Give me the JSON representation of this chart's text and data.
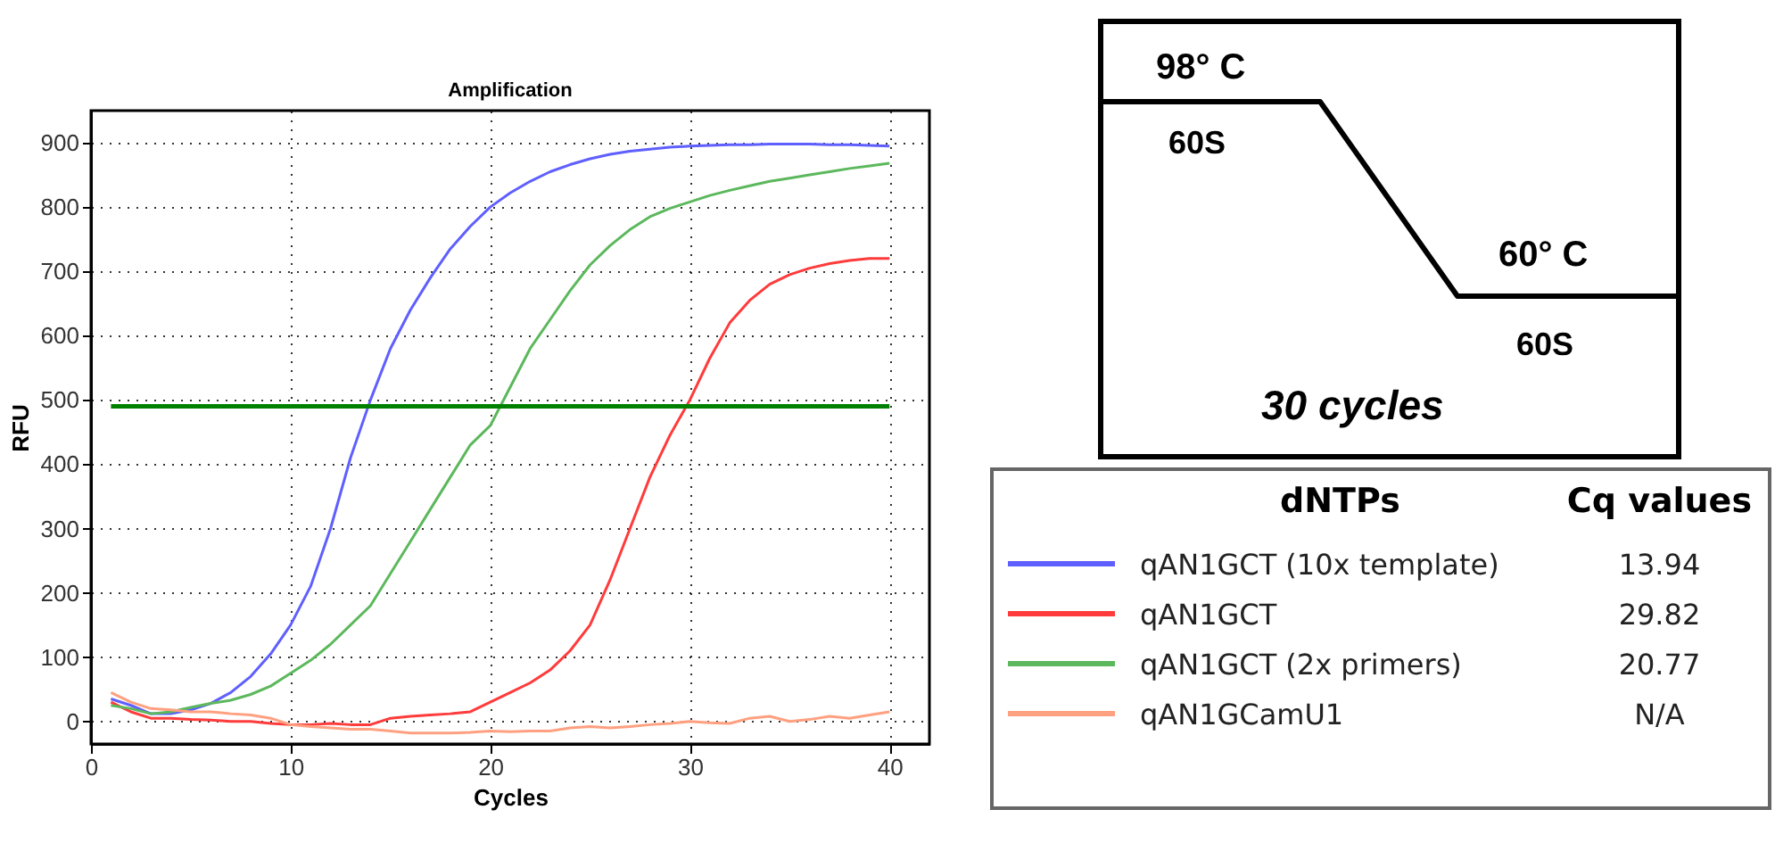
{
  "chart_data": {
    "type": "line",
    "title": "Amplification",
    "xlabel": "Cycles",
    "ylabel": "RFU",
    "legend_title": "dNTPs",
    "x": [
      1,
      2,
      3,
      4,
      5,
      6,
      7,
      8,
      9,
      10,
      11,
      12,
      13,
      14,
      15,
      16,
      17,
      18,
      19,
      20,
      21,
      22,
      23,
      24,
      25,
      26,
      27,
      28,
      29,
      30,
      31,
      32,
      33,
      34,
      35,
      36,
      37,
      38,
      39,
      40
    ],
    "series": [
      {
        "name": "qAN1GCT (10x template)",
        "color": "#5f5fff",
        "values": [
          35,
          25,
          12,
          12,
          18,
          28,
          45,
          70,
          105,
          150,
          210,
          300,
          410,
          500,
          580,
          640,
          690,
          735,
          770,
          800,
          822,
          840,
          855,
          866,
          875,
          882,
          887,
          890,
          893,
          895,
          896,
          897,
          897,
          898,
          898,
          898,
          897,
          897,
          896,
          895
        ]
      },
      {
        "name": "qAN1GCT",
        "color": "#ff3b3b",
        "values": [
          30,
          15,
          5,
          5,
          3,
          2,
          0,
          0,
          -3,
          -5,
          -5,
          -3,
          -5,
          -5,
          5,
          8,
          10,
          12,
          15,
          30,
          45,
          60,
          80,
          110,
          150,
          220,
          300,
          380,
          445,
          500,
          565,
          620,
          655,
          680,
          695,
          705,
          712,
          717,
          720,
          720
        ]
      },
      {
        "name": "qAN1GCT (2x primers)",
        "color": "#5cb85c",
        "values": [
          25,
          20,
          12,
          15,
          22,
          28,
          33,
          42,
          55,
          75,
          95,
          120,
          150,
          180,
          230,
          280,
          330,
          380,
          430,
          460,
          520,
          580,
          625,
          670,
          710,
          740,
          765,
          785,
          798,
          808,
          818,
          826,
          833,
          840,
          845,
          850,
          855,
          860,
          864,
          868
        ]
      },
      {
        "name": "qAN1GCamU1",
        "color": "#ffa080",
        "values": [
          45,
          30,
          20,
          18,
          15,
          15,
          12,
          10,
          5,
          -5,
          -8,
          -10,
          -12,
          -12,
          -15,
          -18,
          -18,
          -18,
          -17,
          -15,
          -16,
          -15,
          -15,
          -10,
          -8,
          -10,
          -8,
          -5,
          -3,
          0,
          -2,
          -3,
          5,
          8,
          0,
          3,
          8,
          5,
          10,
          15
        ]
      }
    ],
    "xlim": [
      0,
      42
    ],
    "xticks": [
      0,
      10,
      20,
      30,
      40
    ],
    "ylim": [
      -35,
      950
    ],
    "yticks": [
      0,
      100,
      200,
      300,
      400,
      500,
      600,
      700,
      800,
      900
    ],
    "ref_lines": [
      {
        "axis": "y",
        "value": 490,
        "color": "#008000"
      }
    ],
    "grid": true,
    "legend": "bottom right",
    "annotations": [
      "98° C",
      "60S",
      "60° C",
      "60S",
      "30 cycles",
      "Cq values",
      "13.94",
      "29.82",
      "20.77",
      "N/A"
    ]
  }
}
